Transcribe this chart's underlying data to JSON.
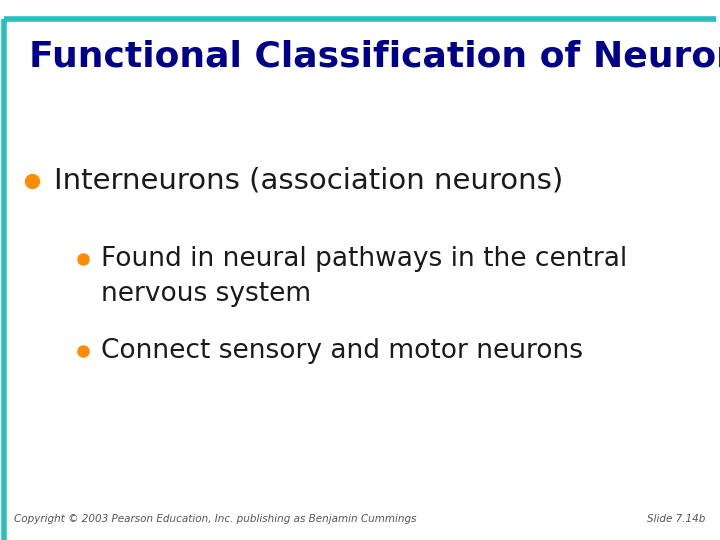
{
  "title": "Functional Classification of Neurons",
  "title_color": "#00008B",
  "title_fontsize": 26,
  "background_color": "#FFFFFF",
  "teal_color": "#2ABFBF",
  "bullet_color": "#FF8C00",
  "bullet1_text": "Interneurons (association neurons)",
  "bullet1_fontsize": 21,
  "bullet1_color": "#1A1A1A",
  "sub_bullet1_line1": "Found in neural pathways in the central",
  "sub_bullet1_line2": "nervous system",
  "sub_bullet2_text": "Connect sensory and motor neurons",
  "sub_bullet_fontsize": 19,
  "sub_bullet_color": "#1A1A1A",
  "footer_left": "Copyright © 2003 Pearson Education, Inc. publishing as Benjamin Cummings",
  "footer_right": "Slide 7.14b",
  "footer_fontsize": 7.5,
  "footer_color": "#555555"
}
